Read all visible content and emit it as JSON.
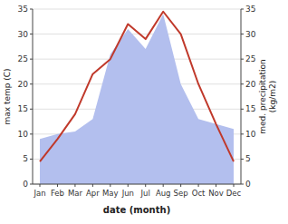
{
  "chart_data": {
    "type": "line",
    "x_label": "date (month)",
    "y_label": "max temp (C)",
    "y2_label": "med. precipitation\n(kg/m2)",
    "categories": [
      "Jan",
      "Feb",
      "Mar",
      "Apr",
      "May",
      "Jun",
      "Jul",
      "Aug",
      "Sep",
      "Oct",
      "Nov",
      "Dec"
    ],
    "series": [
      {
        "type": "area",
        "axis": "y2",
        "color": "#b3bfee",
        "values": [
          9.0,
          10.0,
          10.5,
          13.0,
          26.0,
          31.0,
          27.0,
          34.0,
          20.0,
          13.0,
          12.0,
          11.0
        ]
      },
      {
        "type": "line",
        "color": "#c0392b",
        "values": [
          4.5,
          9.0,
          14.0,
          22.0,
          25.0,
          32.0,
          29.0,
          34.5,
          30.0,
          20.0,
          12.0,
          4.5
        ]
      }
    ],
    "ylim": [
      0,
      35
    ],
    "yticks": [
      0,
      5,
      10,
      15,
      20,
      25,
      30,
      35
    ],
    "y2lim": [
      0,
      35
    ],
    "y2ticks": [
      0,
      5,
      10,
      15,
      20,
      25,
      30,
      35
    ],
    "grid": true
  }
}
